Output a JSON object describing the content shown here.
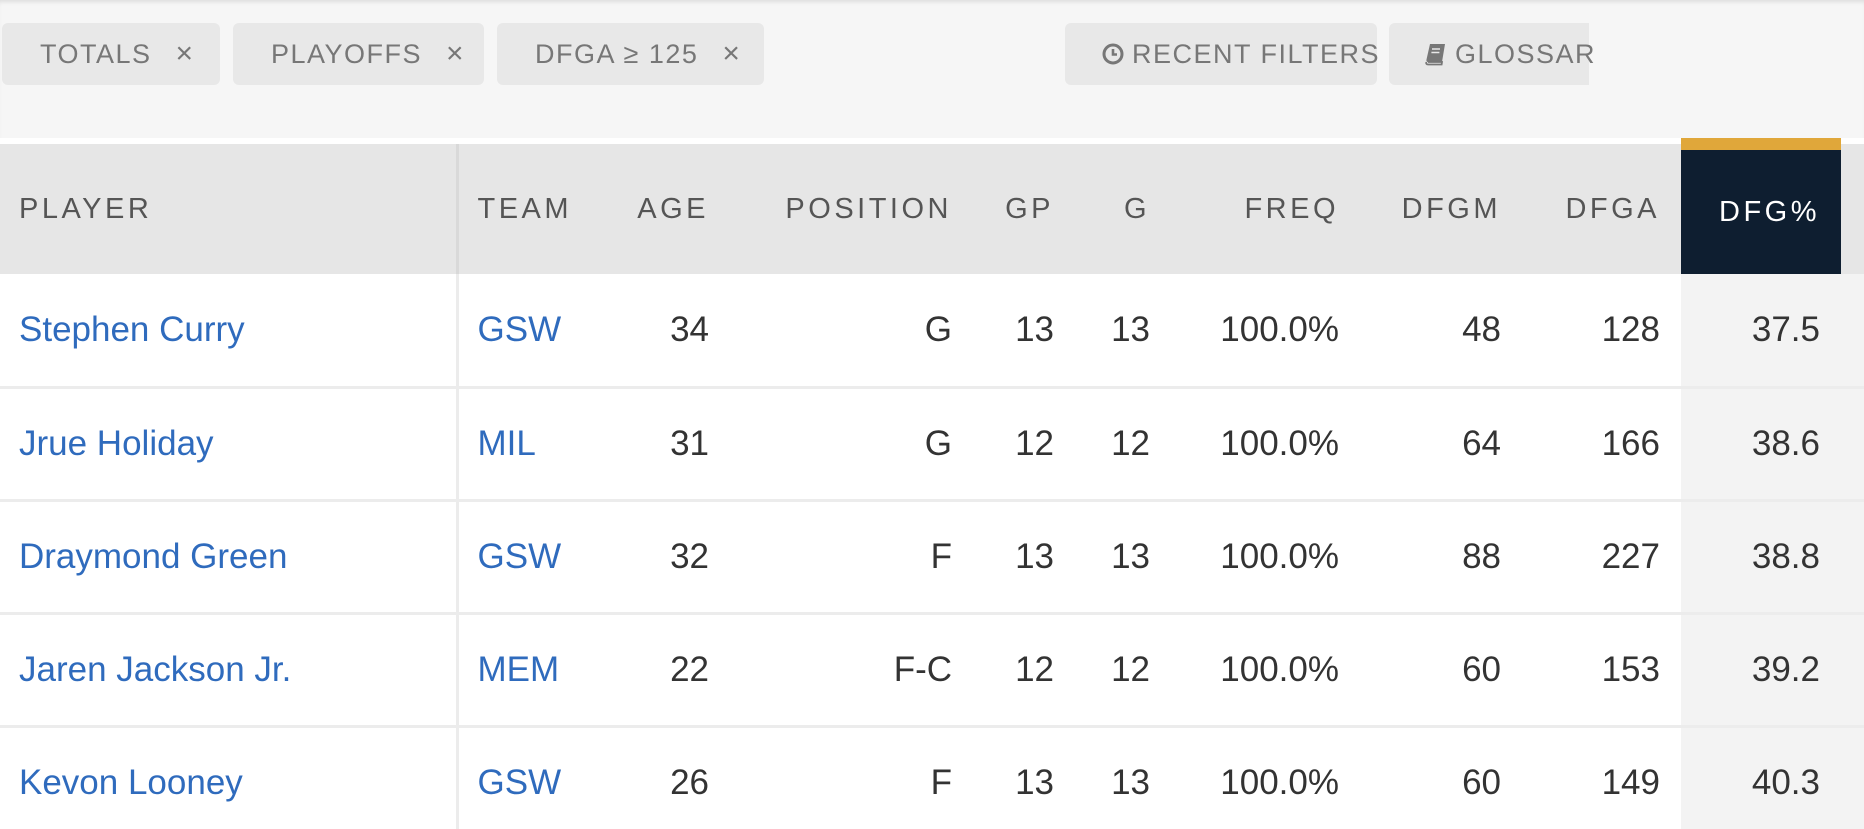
{
  "filters": {
    "chips": [
      {
        "label": "TOTALS",
        "remove": "×"
      },
      {
        "label": "PLAYOFFS",
        "remove": "×"
      },
      {
        "label": "DFGA ≥ 125",
        "remove": "×"
      }
    ],
    "recent_filters_label": "RECENT FILTERS",
    "glossary_label": "GLOSSAR"
  },
  "table": {
    "headers": {
      "player": "PLAYER",
      "team": "TEAM",
      "age": "AGE",
      "position": "POSITION",
      "gp": "GP",
      "g": "G",
      "freq": "FREQ",
      "dfgm": "DFGM",
      "dfga": "DFGA",
      "dfg_pct": "DFG%"
    },
    "sorted_column": "dfg_pct",
    "rows": [
      {
        "player": "Stephen Curry",
        "team": "GSW",
        "age": "34",
        "position": "G",
        "gp": "13",
        "g": "13",
        "freq": "100.0%",
        "dfgm": "48",
        "dfga": "128",
        "dfg_pct": "37.5"
      },
      {
        "player": "Jrue Holiday",
        "team": "MIL",
        "age": "31",
        "position": "G",
        "gp": "12",
        "g": "12",
        "freq": "100.0%",
        "dfgm": "64",
        "dfga": "166",
        "dfg_pct": "38.6"
      },
      {
        "player": "Draymond Green",
        "team": "GSW",
        "age": "32",
        "position": "F",
        "gp": "13",
        "g": "13",
        "freq": "100.0%",
        "dfgm": "88",
        "dfga": "227",
        "dfg_pct": "38.8"
      },
      {
        "player": "Jaren Jackson Jr.",
        "team": "MEM",
        "age": "22",
        "position": "F-C",
        "gp": "12",
        "g": "12",
        "freq": "100.0%",
        "dfgm": "60",
        "dfga": "153",
        "dfg_pct": "39.2"
      },
      {
        "player": "Kevon Looney",
        "team": "GSW",
        "age": "26",
        "position": "F",
        "gp": "13",
        "g": "13",
        "freq": "100.0%",
        "dfgm": "60",
        "dfga": "149",
        "dfg_pct": "40.3"
      }
    ]
  },
  "colors": {
    "link": "#2f6bbd",
    "sorted_header_bg": "#0e1e30",
    "sorted_header_accent": "#e0a73a"
  },
  "icons": {
    "chip_remove": "close-icon",
    "recent_filters": "clock-icon",
    "glossary": "book-icon"
  }
}
